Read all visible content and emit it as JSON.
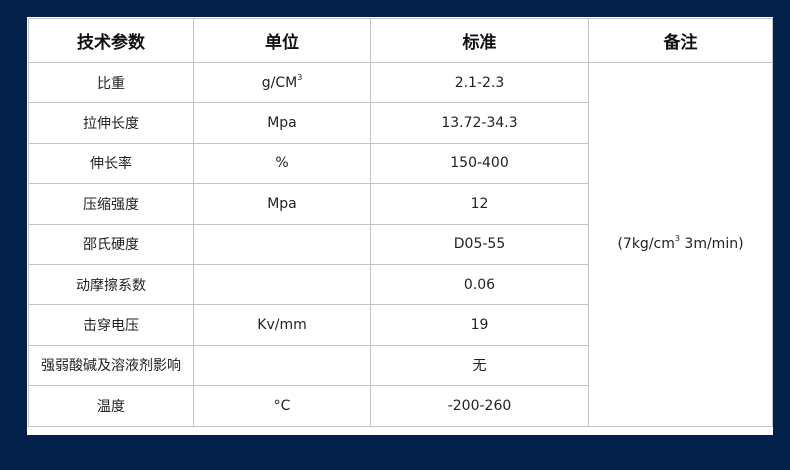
{
  "headers": [
    "技术参数",
    "单位",
    "标准",
    "备注"
  ],
  "rows": [
    {
      "param": "比重",
      "unit": "g/CM",
      "unit_sup": "3",
      "standard": "2.1-2.3"
    },
    {
      "param": "拉伸长度",
      "unit": "Mpa",
      "unit_sup": "",
      "standard": "13.72-34.3"
    },
    {
      "param": "伸长率",
      "unit": "%",
      "unit_sup": "",
      "standard": "150-400"
    },
    {
      "param": "压缩强度",
      "unit": "Mpa",
      "unit_sup": "",
      "standard": "12"
    },
    {
      "param": "邵氏硬度",
      "unit": "",
      "unit_sup": "",
      "standard": "D05-55"
    },
    {
      "param": "动摩擦系数",
      "unit": "",
      "unit_sup": "",
      "standard": "0.06"
    },
    {
      "param": "击穿电压",
      "unit": "Kv/mm",
      "unit_sup": "",
      "standard": "19"
    },
    {
      "param": "强弱酸碱及溶液剂影响",
      "unit": "",
      "unit_sup": "",
      "standard": "无"
    },
    {
      "param": "温度",
      "unit": "°C",
      "unit_sup": "",
      "standard": "-200-260"
    }
  ],
  "note": {
    "pre": "(7kg/cm",
    "sup": "3",
    "post": " 3m/min)"
  },
  "colors": {
    "background": "#03214a",
    "border": "#c4c4c4"
  }
}
